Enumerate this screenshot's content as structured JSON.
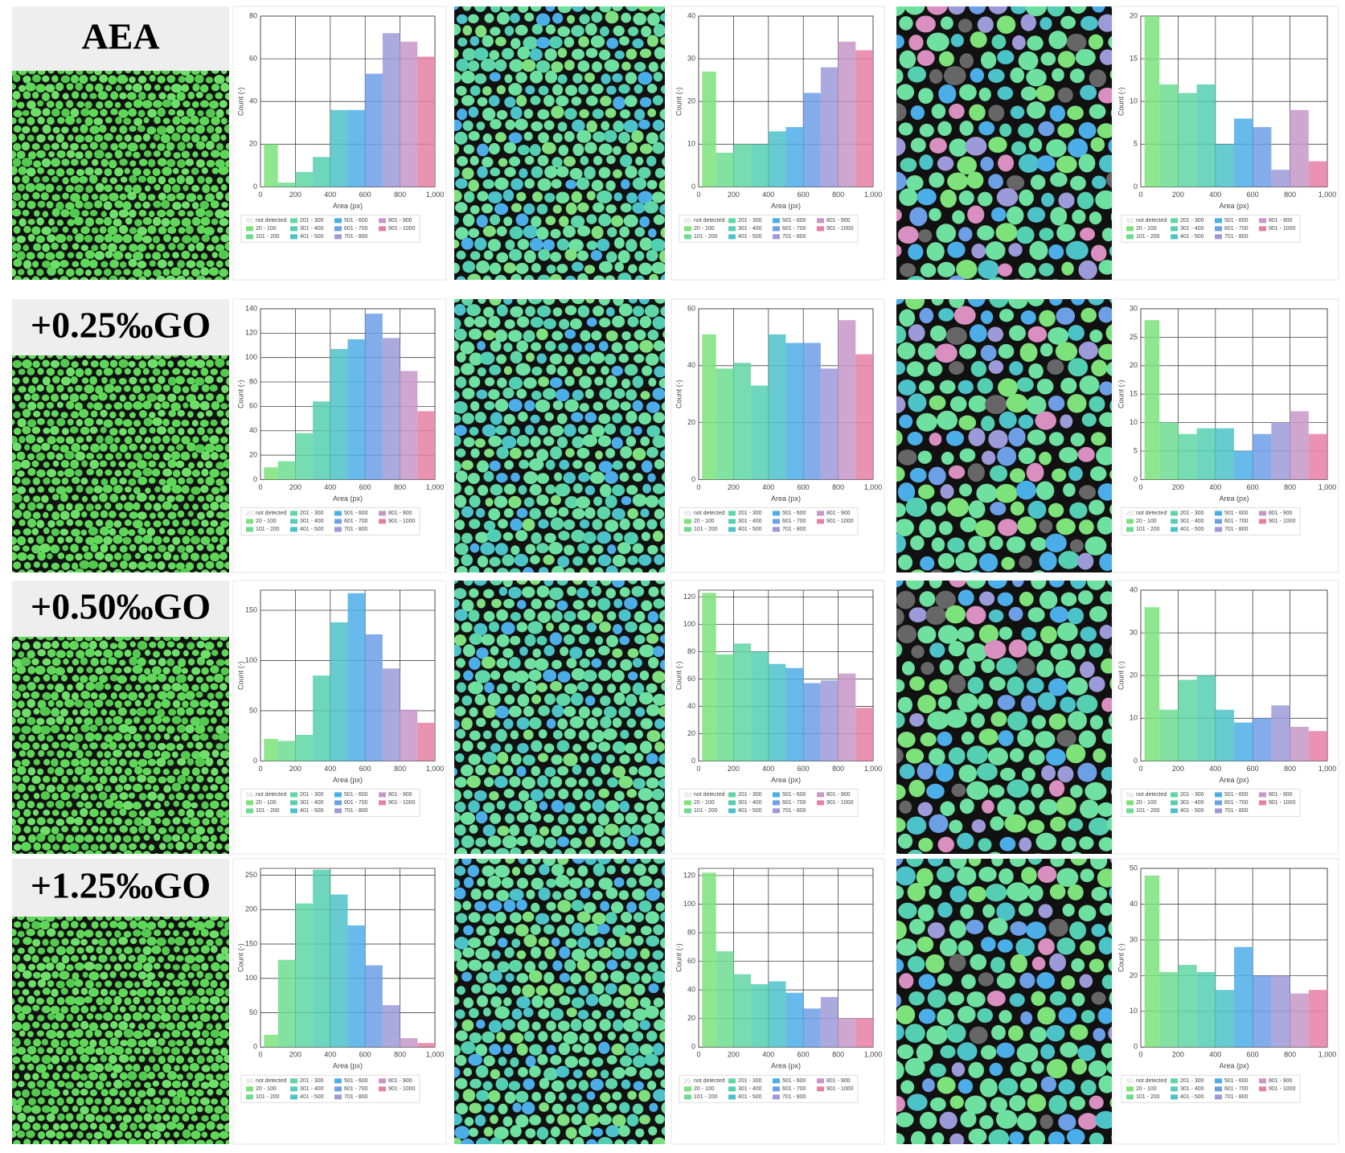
{
  "row_labels": [
    "AEA",
    "+0.25‰GO",
    "+0.50‰GO",
    "+1.25‰GO"
  ],
  "legend": {
    "labels": [
      "not detected",
      "20 - 100",
      "101 - 200",
      "201 - 300",
      "301 - 400",
      "401 - 500",
      "501 - 600",
      "601 - 700",
      "701 - 800",
      "801 - 900",
      "901 - 1000"
    ]
  },
  "bin_colors": [
    "#7de27a",
    "#6ddc92",
    "#5fd6a3",
    "#54cfb2",
    "#4cc2c9",
    "#4caee8",
    "#6d9fe6",
    "#9c9ad8",
    "#c697c8",
    "#e67fa5"
  ],
  "chart_data": [
    {
      "type": "histogram",
      "xlabel": "Area (px)",
      "ylabel": "Count (-)",
      "bins": [
        20,
        100,
        200,
        300,
        400,
        500,
        600,
        700,
        800,
        900,
        1000
      ],
      "values": [
        20,
        2,
        7,
        14,
        36,
        36,
        53,
        72,
        68,
        61
      ],
      "xlim": [
        0,
        1000
      ],
      "xticks": [
        0,
        200,
        400,
        600,
        800,
        {
          "value": 1000,
          "label": "1,000"
        }
      ],
      "ylim": [
        0,
        80
      ],
      "yticks": [
        0,
        20,
        40,
        60,
        80
      ]
    },
    {
      "type": "histogram",
      "xlabel": "Area (px)",
      "ylabel": "Count (-)",
      "bins": [
        20,
        100,
        200,
        300,
        400,
        500,
        600,
        700,
        800,
        900,
        1000
      ],
      "values": [
        27,
        8,
        10,
        10,
        13,
        14,
        22,
        28,
        34,
        32
      ],
      "xlim": [
        0,
        1000
      ],
      "xticks": [
        0,
        200,
        400,
        600,
        800,
        {
          "value": 1000,
          "label": "1,000"
        }
      ],
      "ylim": [
        0,
        40
      ],
      "yticks": [
        0,
        10,
        20,
        30,
        40
      ]
    },
    {
      "type": "histogram",
      "xlabel": "Area (px)",
      "ylabel": "Count (-)",
      "bins": [
        20,
        100,
        200,
        300,
        400,
        500,
        600,
        700,
        800,
        900,
        1000
      ],
      "values": [
        20,
        12,
        11,
        12,
        5,
        8,
        7,
        2,
        9,
        3
      ],
      "xlim": [
        0,
        1000
      ],
      "xticks": [
        0,
        200,
        400,
        600,
        800,
        {
          "value": 1000,
          "label": "1,000"
        }
      ],
      "ylim": [
        0,
        20
      ],
      "yticks": [
        0,
        5,
        10,
        15,
        20
      ]
    },
    {
      "type": "histogram",
      "xlabel": "Area (px)",
      "ylabel": "Count (-)",
      "bins": [
        20,
        100,
        200,
        300,
        400,
        500,
        600,
        700,
        800,
        900,
        1000
      ],
      "values": [
        10,
        15,
        38,
        64,
        107,
        115,
        136,
        116,
        89,
        56
      ],
      "xlim": [
        0,
        1000
      ],
      "xticks": [
        0,
        200,
        400,
        600,
        800,
        {
          "value": 1000,
          "label": "1,000"
        }
      ],
      "ylim": [
        0,
        140
      ],
      "yticks": [
        0,
        20,
        40,
        60,
        80,
        100,
        120,
        140
      ]
    },
    {
      "type": "histogram",
      "xlabel": "Area (px)",
      "ylabel": "Count (-)",
      "bins": [
        20,
        100,
        200,
        300,
        400,
        500,
        600,
        700,
        800,
        900,
        1000
      ],
      "values": [
        51,
        39,
        41,
        33,
        51,
        48,
        48,
        39,
        56,
        44
      ],
      "xlim": [
        0,
        1000
      ],
      "xticks": [
        0,
        200,
        400,
        600,
        800,
        {
          "value": 1000,
          "label": "1,000"
        }
      ],
      "ylim": [
        0,
        60
      ],
      "yticks": [
        0,
        20,
        40,
        60
      ]
    },
    {
      "type": "histogram",
      "xlabel": "Area (px)",
      "ylabel": "Count (-)",
      "bins": [
        20,
        100,
        200,
        300,
        400,
        500,
        600,
        700,
        800,
        900,
        1000
      ],
      "values": [
        28,
        10,
        8,
        9,
        9,
        5,
        8,
        10,
        12,
        8
      ],
      "xlim": [
        0,
        1000
      ],
      "xticks": [
        0,
        200,
        400,
        600,
        800,
        {
          "value": 1000,
          "label": "1,000"
        }
      ],
      "ylim": [
        0,
        30
      ],
      "yticks": [
        0,
        5,
        10,
        15,
        20,
        25,
        30
      ]
    },
    {
      "type": "histogram",
      "xlabel": "Area (px)",
      "ylabel": "Count (-)",
      "bins": [
        20,
        100,
        200,
        300,
        400,
        500,
        600,
        700,
        800,
        900,
        1000
      ],
      "values": [
        22,
        20,
        26,
        85,
        138,
        167,
        126,
        92,
        51,
        38
      ],
      "xlim": [
        0,
        1000
      ],
      "xticks": [
        0,
        200,
        400,
        600,
        800,
        {
          "value": 1000,
          "label": "1,000"
        }
      ],
      "ylim": [
        0,
        170
      ],
      "yticks": [
        0,
        50,
        100,
        150
      ]
    },
    {
      "type": "histogram",
      "xlabel": "Area (px)",
      "ylabel": "Count (-)",
      "bins": [
        20,
        100,
        200,
        300,
        400,
        500,
        600,
        700,
        800,
        900,
        1000
      ],
      "values": [
        123,
        78,
        86,
        80,
        71,
        68,
        57,
        59,
        64,
        39
      ],
      "xlim": [
        0,
        1000
      ],
      "xticks": [
        0,
        200,
        400,
        600,
        800,
        {
          "value": 1000,
          "label": "1,000"
        }
      ],
      "ylim": [
        0,
        125
      ],
      "yticks": [
        0,
        20,
        40,
        60,
        80,
        100,
        120
      ]
    },
    {
      "type": "histogram",
      "xlabel": "Area (px)",
      "ylabel": "Count (-)",
      "bins": [
        20,
        100,
        200,
        300,
        400,
        500,
        600,
        700,
        800,
        900,
        1000
      ],
      "values": [
        36,
        12,
        19,
        20,
        12,
        9,
        10,
        13,
        8,
        7
      ],
      "xlim": [
        0,
        1000
      ],
      "xticks": [
        0,
        200,
        400,
        600,
        800,
        {
          "value": 1000,
          "label": "1,000"
        }
      ],
      "ylim": [
        0,
        40
      ],
      "yticks": [
        0,
        10,
        20,
        30,
        40
      ]
    },
    {
      "type": "histogram",
      "xlabel": "Area (px)",
      "ylabel": "Count (-)",
      "bins": [
        20,
        100,
        200,
        300,
        400,
        500,
        600,
        700,
        800,
        900,
        1000
      ],
      "values": [
        18,
        127,
        209,
        258,
        222,
        177,
        119,
        61,
        13,
        6
      ],
      "xlim": [
        0,
        1000
      ],
      "xticks": [
        0,
        200,
        400,
        600,
        800,
        {
          "value": 1000,
          "label": "1,000"
        }
      ],
      "ylim": [
        0,
        260
      ],
      "yticks": [
        0,
        50,
        100,
        150,
        200,
        250
      ]
    },
    {
      "type": "histogram",
      "xlabel": "Area (px)",
      "ylabel": "Count (-)",
      "bins": [
        20,
        100,
        200,
        300,
        400,
        500,
        600,
        700,
        800,
        900,
        1000
      ],
      "values": [
        122,
        67,
        51,
        44,
        46,
        38,
        27,
        35,
        20,
        20
      ],
      "xlim": [
        0,
        1000
      ],
      "xticks": [
        0,
        200,
        400,
        600,
        800,
        {
          "value": 1000,
          "label": "1,000"
        }
      ],
      "ylim": [
        0,
        125
      ],
      "yticks": [
        0,
        20,
        40,
        60,
        80,
        100,
        120
      ]
    },
    {
      "type": "histogram",
      "xlabel": "Area (px)",
      "ylabel": "Count (-)",
      "bins": [
        20,
        100,
        200,
        300,
        400,
        500,
        600,
        700,
        800,
        900,
        1000
      ],
      "values": [
        48,
        21,
        23,
        21,
        16,
        28,
        20,
        20,
        15,
        16
      ],
      "xlim": [
        0,
        1000
      ],
      "xticks": [
        0,
        200,
        400,
        600,
        800,
        {
          "value": 1000,
          "label": "1,000"
        }
      ],
      "ylim": [
        0,
        50
      ],
      "yticks": [
        0,
        10,
        20,
        30,
        40,
        50
      ]
    }
  ]
}
